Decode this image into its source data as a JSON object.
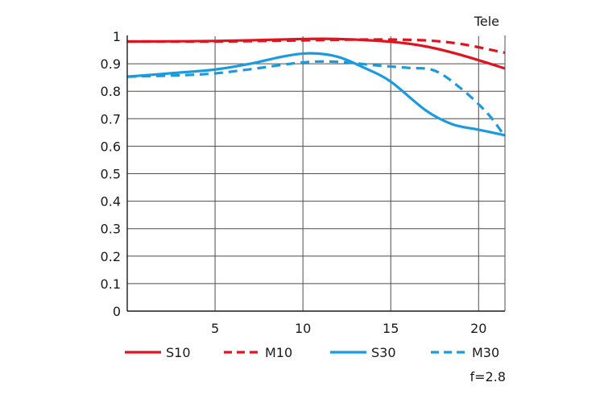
{
  "chart_data": {
    "type": "line",
    "title": "Tele",
    "subtitle": "",
    "xlabel": "",
    "ylabel": "",
    "annotation": "f=2.8",
    "xlim": [
      0,
      21.5
    ],
    "ylim": [
      0,
      1
    ],
    "x_ticks": [
      5,
      10,
      15,
      20
    ],
    "y_ticks": [
      0,
      0.1,
      0.2,
      0.3,
      0.4,
      0.5,
      0.6,
      0.7,
      0.8,
      0.9,
      1
    ],
    "y_tick_labels": [
      "0",
      "0.1",
      "0.2",
      "0.3",
      "0.4",
      "0.5",
      "0.6",
      "0.7",
      "0.8",
      "0.9",
      "1"
    ],
    "grid": true,
    "legend_position": "bottom",
    "series": [
      {
        "name": "S10",
        "color": "#e0141e",
        "style": "solid",
        "x": [
          0,
          5,
          10,
          12,
          15,
          17,
          19,
          21.5
        ],
        "y": [
          0.981,
          0.983,
          0.99,
          0.99,
          0.98,
          0.963,
          0.932,
          0.883
        ]
      },
      {
        "name": "M10",
        "color": "#e0141e",
        "style": "dashed",
        "x": [
          0,
          5,
          10,
          13,
          15,
          17,
          19,
          21.5
        ],
        "y": [
          0.981,
          0.981,
          0.985,
          0.988,
          0.988,
          0.985,
          0.972,
          0.94
        ]
      },
      {
        "name": "S30",
        "color": "#1a9be0",
        "style": "solid",
        "x": [
          0,
          3,
          5,
          7,
          9,
          10.5,
          12,
          13.5,
          15,
          17,
          18.5,
          20,
          21.5
        ],
        "y": [
          0.853,
          0.868,
          0.879,
          0.9,
          0.928,
          0.938,
          0.925,
          0.885,
          0.835,
          0.73,
          0.68,
          0.66,
          0.64
        ]
      },
      {
        "name": "M30",
        "color": "#1a9be0",
        "style": "dashed",
        "x": [
          0,
          3,
          5,
          7,
          10,
          12,
          14,
          16,
          17.5,
          19,
          20.5,
          21.5
        ],
        "y": [
          0.853,
          0.858,
          0.865,
          0.88,
          0.905,
          0.907,
          0.895,
          0.885,
          0.875,
          0.81,
          0.72,
          0.635
        ]
      }
    ]
  }
}
